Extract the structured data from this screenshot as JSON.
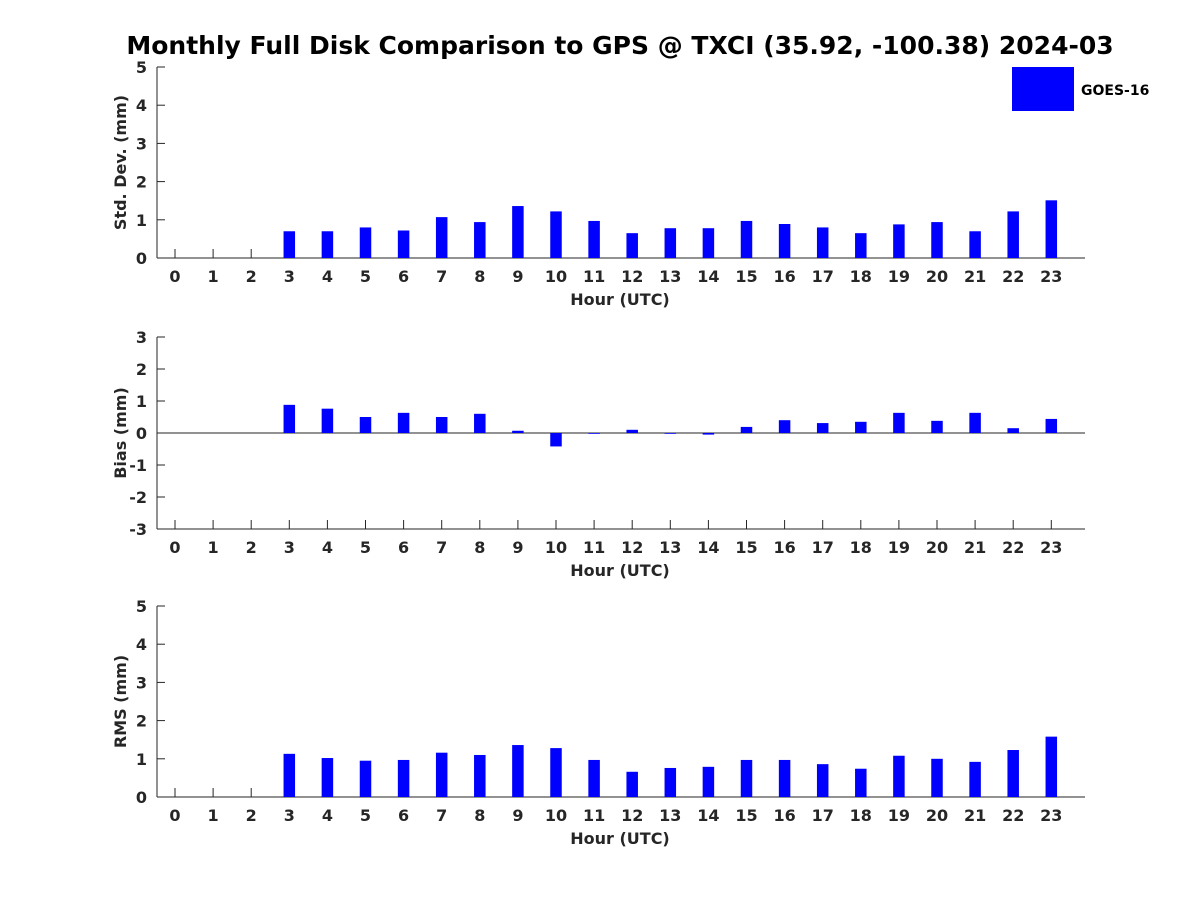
{
  "title": "Monthly Full Disk Comparison to GPS @ TXCI (35.92, -100.38) 2024-03",
  "legend": {
    "label": "GOES-16",
    "color": "#0000ff",
    "placement": "top-right"
  },
  "chart_data": [
    {
      "type": "bar",
      "name": "std-dev",
      "xlabel": "Hour (UTC)",
      "ylabel": "Std. Dev. (mm)",
      "ylim": [
        0,
        5
      ],
      "yticks": [
        0,
        1,
        2,
        3,
        4,
        5
      ],
      "categories": [
        "0",
        "1",
        "2",
        "3",
        "4",
        "5",
        "6",
        "7",
        "8",
        "9",
        "10",
        "11",
        "12",
        "13",
        "14",
        "15",
        "16",
        "17",
        "18",
        "19",
        "20",
        "21",
        "22",
        "23"
      ],
      "series": [
        {
          "name": "GOES-16",
          "color": "#0000ff",
          "values": [
            null,
            null,
            null,
            0.7,
            0.7,
            0.8,
            0.72,
            1.07,
            0.94,
            1.36,
            1.22,
            0.97,
            0.65,
            0.78,
            0.78,
            0.97,
            0.89,
            0.8,
            0.65,
            0.88,
            0.94,
            0.7,
            1.22,
            1.51
          ]
        }
      ],
      "grid": false
    },
    {
      "type": "bar",
      "name": "bias",
      "xlabel": "Hour (UTC)",
      "ylabel": "Bias (mm)",
      "ylim": [
        -3,
        3
      ],
      "yticks": [
        -3,
        -2,
        -1,
        0,
        1,
        2,
        3
      ],
      "categories": [
        "0",
        "1",
        "2",
        "3",
        "4",
        "5",
        "6",
        "7",
        "8",
        "9",
        "10",
        "11",
        "12",
        "13",
        "14",
        "15",
        "16",
        "17",
        "18",
        "19",
        "20",
        "21",
        "22",
        "23"
      ],
      "series": [
        {
          "name": "GOES-16",
          "color": "#0000ff",
          "values": [
            null,
            null,
            null,
            0.88,
            0.76,
            0.5,
            0.63,
            0.5,
            0.6,
            0.07,
            -0.42,
            -0.01,
            0.1,
            0.0,
            -0.05,
            0.19,
            0.4,
            0.31,
            0.35,
            0.63,
            0.38,
            0.63,
            0.15,
            0.44
          ]
        }
      ],
      "grid": false
    },
    {
      "type": "bar",
      "name": "rms",
      "xlabel": "Hour (UTC)",
      "ylabel": "RMS (mm)",
      "ylim": [
        0,
        5
      ],
      "yticks": [
        0,
        1,
        2,
        3,
        4,
        5
      ],
      "categories": [
        "0",
        "1",
        "2",
        "3",
        "4",
        "5",
        "6",
        "7",
        "8",
        "9",
        "10",
        "11",
        "12",
        "13",
        "14",
        "15",
        "16",
        "17",
        "18",
        "19",
        "20",
        "21",
        "22",
        "23"
      ],
      "series": [
        {
          "name": "GOES-16",
          "color": "#0000ff",
          "values": [
            null,
            null,
            null,
            1.13,
            1.02,
            0.95,
            0.97,
            1.16,
            1.1,
            1.36,
            1.28,
            0.97,
            0.66,
            0.76,
            0.79,
            0.97,
            0.97,
            0.86,
            0.74,
            1.08,
            1.0,
            0.92,
            1.23,
            1.58
          ]
        }
      ],
      "grid": false
    }
  ]
}
